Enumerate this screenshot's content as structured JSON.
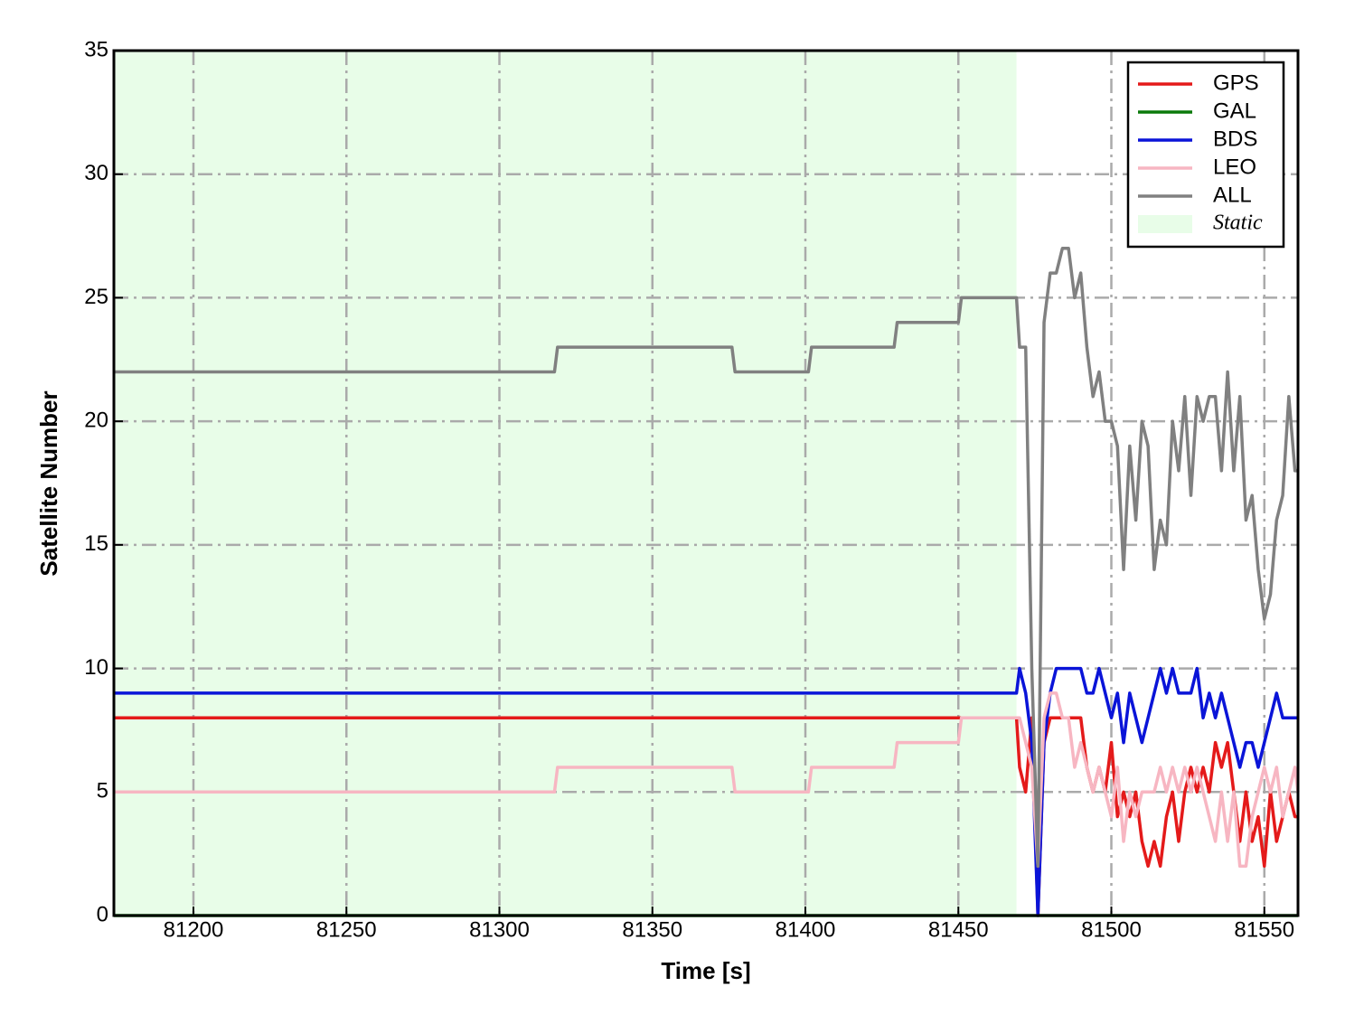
{
  "chart_data": {
    "type": "line",
    "xlabel": "Time [s]",
    "ylabel": "Satellite Number",
    "x": [
      81174,
      81318,
      81319,
      81376,
      81377,
      81401,
      81402,
      81429,
      81430,
      81450,
      81451,
      81469,
      81470,
      81472,
      81474,
      81476,
      81478,
      81480,
      81482,
      81484,
      81486,
      81488,
      81490,
      81492,
      81494,
      81496,
      81498,
      81500,
      81502,
      81504,
      81506,
      81508,
      81510,
      81512,
      81514,
      81516,
      81518,
      81520,
      81522,
      81524,
      81526,
      81528,
      81530,
      81532,
      81534,
      81536,
      81538,
      81540,
      81542,
      81544,
      81546,
      81548,
      81550,
      81552,
      81554,
      81556,
      81558,
      81560,
      81561
    ],
    "series": [
      {
        "name": "GPS",
        "color": "#e41a1a",
        "values": [
          8,
          8,
          8,
          8,
          8,
          8,
          8,
          8,
          8,
          8,
          8,
          8,
          6,
          5,
          8,
          0,
          7,
          8,
          8,
          8,
          8,
          8,
          8,
          6,
          5,
          6,
          5,
          7,
          4,
          5,
          4,
          5,
          3,
          2,
          3,
          2,
          4,
          5,
          3,
          5,
          6,
          5,
          6,
          5,
          7,
          6,
          7,
          5,
          3,
          5,
          3,
          4,
          2,
          5,
          3,
          4,
          5,
          4,
          4
        ]
      },
      {
        "name": "GAL",
        "color": "#0a7a0a",
        "values": [
          0,
          0,
          0,
          0,
          0,
          0,
          0,
          0,
          0,
          0,
          0,
          0,
          0,
          0,
          0,
          0,
          0,
          0,
          0,
          0,
          0,
          0,
          0,
          0,
          0,
          0,
          0,
          0,
          0,
          0,
          0,
          0,
          0,
          0,
          0,
          0,
          0,
          0,
          0,
          0,
          0,
          0,
          0,
          0,
          0,
          0,
          0,
          0,
          0,
          0,
          0,
          0,
          0,
          0,
          0,
          0,
          0,
          0,
          0
        ]
      },
      {
        "name": "BDS",
        "color": "#0a14d8",
        "values": [
          9,
          9,
          9,
          9,
          9,
          9,
          9,
          9,
          9,
          9,
          9,
          9,
          10,
          9,
          7,
          0,
          7,
          9,
          10,
          10,
          10,
          10,
          10,
          9,
          9,
          10,
          9,
          8,
          9,
          7,
          9,
          8,
          7,
          8,
          9,
          10,
          9,
          10,
          9,
          9,
          9,
          10,
          8,
          9,
          8,
          9,
          8,
          7,
          6,
          7,
          7,
          6,
          7,
          8,
          9,
          8,
          8,
          8,
          8
        ]
      },
      {
        "name": "LEO",
        "color": "#f7b6c2",
        "values": [
          5,
          5,
          6,
          6,
          5,
          5,
          6,
          6,
          7,
          7,
          8,
          8,
          8,
          7,
          6,
          2,
          8,
          9,
          9,
          8,
          8,
          6,
          7,
          6,
          5,
          6,
          5,
          4,
          6,
          3,
          5,
          4,
          5,
          5,
          5,
          6,
          5,
          6,
          5,
          6,
          5,
          6,
          5,
          4,
          3,
          5,
          3,
          5,
          2,
          2,
          4,
          5,
          6,
          5,
          6,
          4,
          5,
          6,
          5
        ]
      },
      {
        "name": "ALL",
        "color": "#808080",
        "values": [
          22,
          22,
          23,
          23,
          22,
          22,
          23,
          23,
          24,
          24,
          25,
          25,
          23,
          23,
          10,
          2,
          24,
          26,
          26,
          27,
          27,
          25,
          26,
          23,
          21,
          22,
          20,
          20,
          19,
          14,
          19,
          16,
          20,
          19,
          14,
          16,
          15,
          20,
          18,
          21,
          17,
          21,
          20,
          21,
          21,
          18,
          22,
          18,
          21,
          16,
          17,
          14,
          12,
          13,
          16,
          17,
          21,
          18,
          18
        ]
      }
    ],
    "shaded_regions": [
      {
        "name": "Static",
        "x": [
          81174,
          81469
        ],
        "color": "#e8fde8"
      }
    ],
    "xlim": [
      81174,
      81561
    ],
    "xticks": [
      81200,
      81250,
      81300,
      81350,
      81400,
      81450,
      81500,
      81550
    ],
    "ylim": [
      0,
      35
    ],
    "yticks": [
      0,
      5,
      10,
      15,
      20,
      25,
      30,
      35
    ],
    "grid": true,
    "legend": "upper right"
  }
}
